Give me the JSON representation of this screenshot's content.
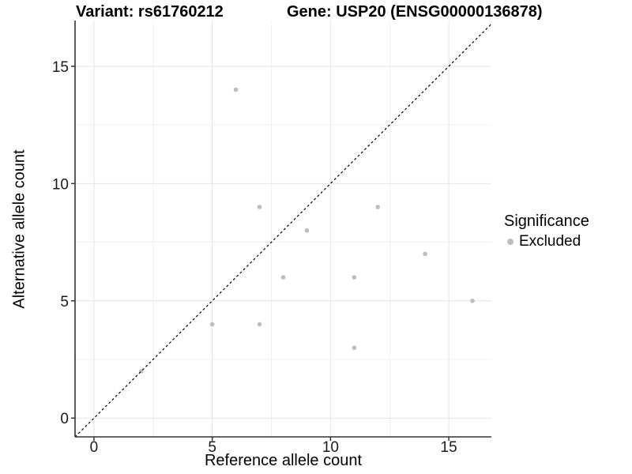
{
  "chart_data": {
    "type": "scatter",
    "title_left": "Variant: rs61760212",
    "title_right": "Gene: USP20 (ENSG00000136878)",
    "xlabel": "Reference allele count",
    "ylabel": "Alternative allele count",
    "xlim": [
      -0.8,
      16.8
    ],
    "ylim": [
      -0.8,
      16.95
    ],
    "x_ticks": [
      0,
      5,
      10,
      15
    ],
    "y_ticks": [
      0,
      5,
      10,
      15
    ],
    "x_minor_ticks": [
      2.5,
      7.5,
      12.5
    ],
    "y_minor_ticks": [
      2.5,
      7.5,
      12.5
    ],
    "grid": "major and minor gridlines, light gray on white panel",
    "series": [
      {
        "name": "Excluded",
        "points": [
          [
            2,
            2
          ],
          [
            5,
            4
          ],
          [
            6,
            14
          ],
          [
            7,
            4
          ],
          [
            7,
            9
          ],
          [
            8,
            6
          ],
          [
            9,
            8
          ],
          [
            11,
            3
          ],
          [
            11,
            6
          ],
          [
            12,
            9
          ],
          [
            14,
            7
          ],
          [
            16,
            5
          ]
        ]
      }
    ],
    "reference_line": {
      "type": "identity y=x",
      "style": "dashed"
    },
    "legend": {
      "title": "Significance",
      "position": "right",
      "entries": [
        {
          "label": "Excluded",
          "color": "#bdbdbd"
        }
      ]
    },
    "colors": {
      "point": "#bdbdbd",
      "grid_major": "#e4e4e4",
      "grid_minor": "#f1f1f1",
      "axis": "#333333",
      "tick_mark": "#333333",
      "tick_label": "#1a1a1a",
      "reference_line": "#000000",
      "text": "#000000",
      "background": "#ffffff"
    }
  }
}
